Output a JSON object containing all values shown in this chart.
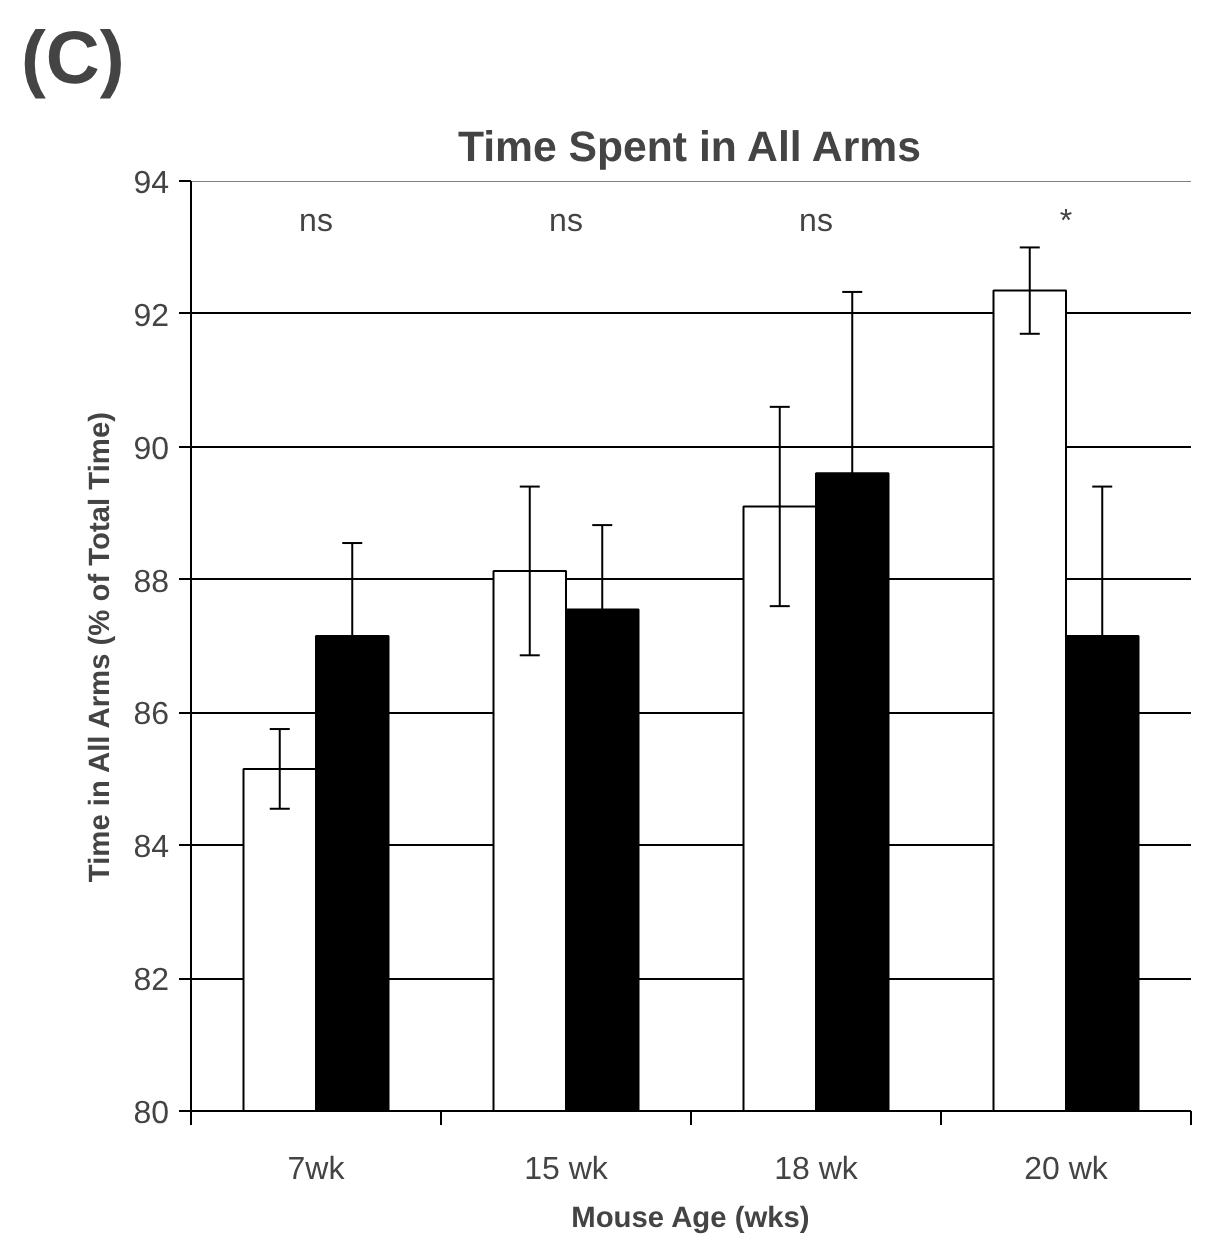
{
  "chart_data": {
    "type": "bar",
    "title": "Time Spent in All Arms",
    "xlabel": "Mouse Age (wks)",
    "ylabel": "Time in All Arms (% of Total Time)",
    "categories": [
      "7wk",
      "15 wk",
      "18 wk",
      "20 wk"
    ],
    "series": [
      {
        "color": "#ffffff",
        "values": [
          85.15,
          88.13,
          89.1,
          92.35
        ],
        "errors": [
          0.6,
          1.27,
          1.5,
          0.65
        ]
      },
      {
        "color": "#000000",
        "values": [
          87.15,
          87.55,
          89.6,
          87.15
        ],
        "errors": [
          1.4,
          1.27,
          2.73,
          2.25
        ]
      }
    ],
    "ylim": [
      80,
      94
    ],
    "yticks": [
      80,
      82,
      84,
      86,
      88,
      90,
      92,
      94
    ],
    "grid": "y",
    "annotations": [
      "(C)",
      "ns",
      "ns",
      "ns",
      "*"
    ]
  }
}
